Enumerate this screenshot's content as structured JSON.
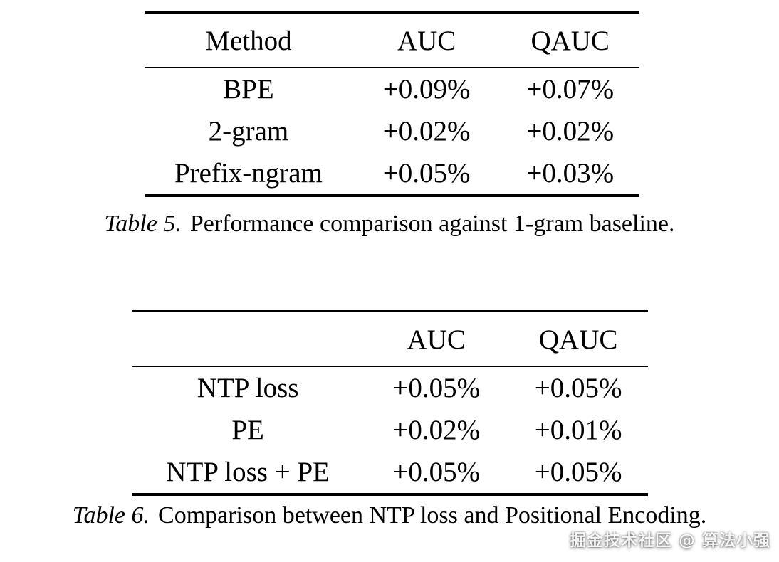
{
  "tables": [
    {
      "caption_label": "Table 5.",
      "caption_text": "Performance comparison against 1-gram baseline.",
      "headers": [
        "Method",
        "AUC",
        "QAUC"
      ],
      "rows": [
        [
          "BPE",
          "+0.09%",
          "+0.07%"
        ],
        [
          "2-gram",
          "+0.02%",
          "+0.02%"
        ],
        [
          "Prefix-ngram",
          "+0.05%",
          "+0.03%"
        ]
      ]
    },
    {
      "caption_label": "Table 6.",
      "caption_text": "Comparison between NTP loss and Positional Encoding.",
      "headers": [
        "",
        "AUC",
        "QAUC"
      ],
      "rows": [
        [
          "NTP loss",
          "+0.05%",
          "+0.05%"
        ],
        [
          "PE",
          "+0.02%",
          "+0.01%"
        ],
        [
          "NTP loss + PE",
          "+0.05%",
          "+0.05%"
        ]
      ]
    }
  ],
  "watermark": {
    "text": "掘金技术社区 @ 算法小强"
  }
}
